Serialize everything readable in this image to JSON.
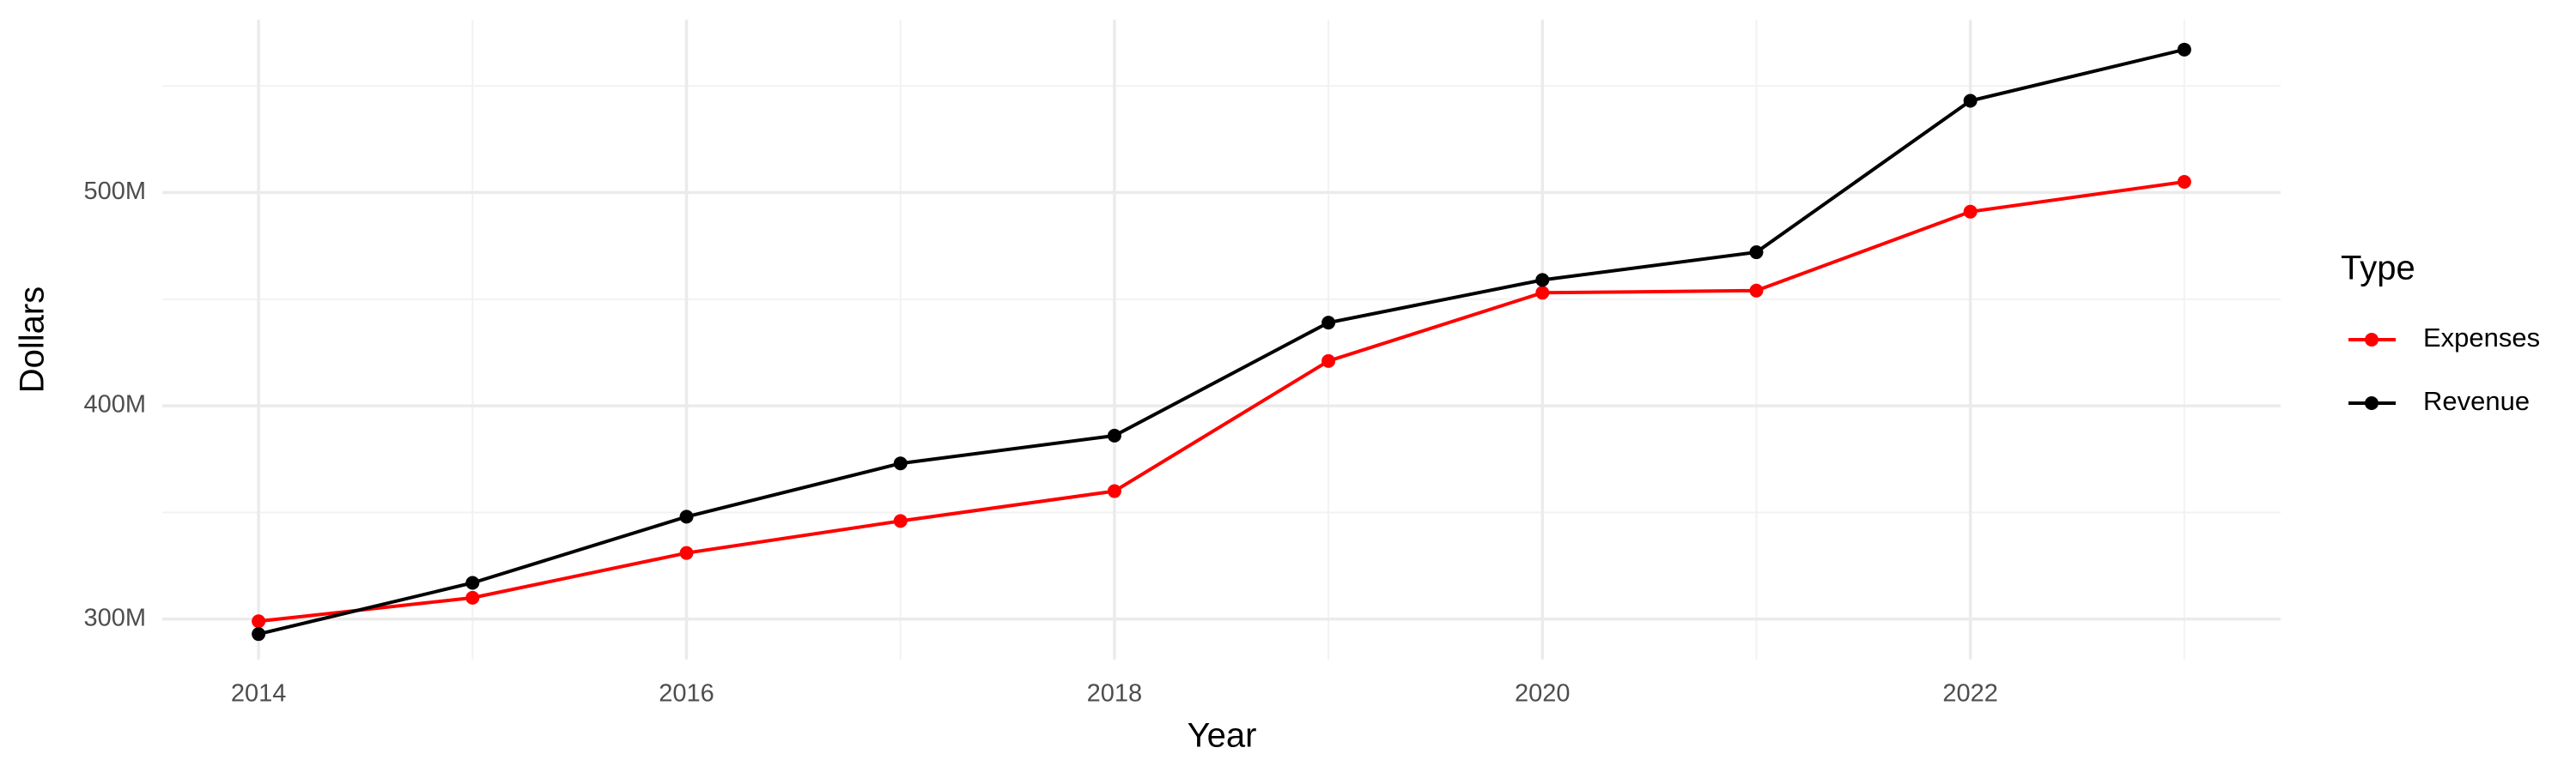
{
  "chart_data": {
    "type": "line",
    "x": [
      2014,
      2015,
      2016,
      2017,
      2018,
      2019,
      2020,
      2021,
      2022,
      2023
    ],
    "series": [
      {
        "name": "Expenses",
        "color": "#ff0000",
        "values": [
          299000000,
          310000000,
          331000000,
          346000000,
          360000000,
          421000000,
          453000000,
          454000000,
          491000000,
          505000000
        ]
      },
      {
        "name": "Revenue",
        "color": "#000000",
        "values": [
          293000000,
          317000000,
          348000000,
          373000000,
          386000000,
          439000000,
          459000000,
          472000000,
          543000000,
          567000000
        ]
      }
    ],
    "xlabel": "Year",
    "ylabel": "Dollars",
    "legend_title": "Type",
    "xlim": [
      2013.55,
      2023.45
    ],
    "xticks": [
      2014,
      2016,
      2018,
      2020,
      2022
    ],
    "ylim": [
      281000000,
      581000000
    ],
    "yticks": [
      {
        "value": 300000000,
        "label": "300M"
      },
      {
        "value": 400000000,
        "label": "400M"
      },
      {
        "value": 500000000,
        "label": "500M"
      }
    ],
    "grid": true,
    "legend": "right"
  }
}
